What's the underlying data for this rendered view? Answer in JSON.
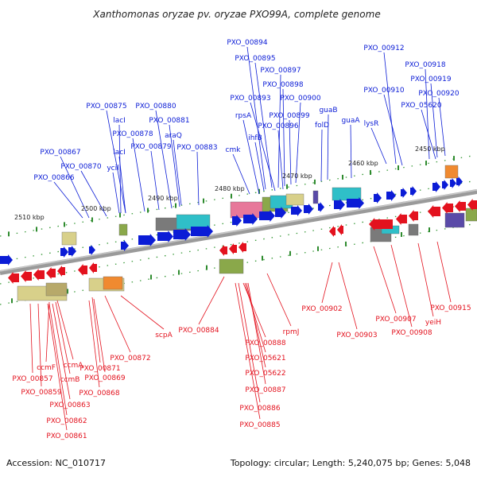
{
  "title": "Xanthomonas oryzae pv. oryzae PXO99A, complete genome",
  "footer": {
    "accession": "Accession: NC_010717",
    "summary": "Topology: circular; Length: 5,240,075 bp; Genes: 5,048"
  },
  "colors": {
    "forward_strand": "#0b1cd6",
    "reverse_strand": "#e3121e",
    "backbone": "#9a9a9a",
    "tick": "#2e8b2e",
    "block_palette": [
      "#d8d08a",
      "#b7a96a",
      "#8aa84a",
      "#2fbfc8",
      "#f08a30",
      "#7a7a7a",
      "#e7789a",
      "#5a4aa8"
    ]
  },
  "scale_labels": [
    "2510 kbp",
    "2500 kbp",
    "2490 kbp",
    "2480 kbp",
    "2470 kbp",
    "2460 kbp",
    "2450 kbp"
  ],
  "forward_labels": [
    "PXO_00894",
    "PXO_00895",
    "PXO_00897",
    "PXO_00898",
    "PXO_00893",
    "PXO_00900",
    "PXO_00899",
    "rpsA",
    "PXO_00896",
    "ihfB",
    "guaB",
    "folD",
    "guaA",
    "cmk",
    "PXO_00875",
    "PXO_00880",
    "lacI",
    "PXO_00881",
    "PXO_00878",
    "araQ",
    "PXO_00879",
    "PXO_00883",
    "lacI",
    "PXO_00867",
    "PXO_00870",
    "ycil",
    "PXO_00866",
    "PXO_00912",
    "PXO_00918",
    "PXO_00919",
    "PXO_00910",
    "PXO_00920",
    "PXO_05620",
    "lysR"
  ],
  "reverse_labels": [
    "PXO_00872",
    "ccmA",
    "PXO_00871",
    "PXO_00869",
    "ccmF",
    "ccmB",
    "PXO_00857",
    "PXO_00868",
    "PXO_00859",
    "PXO_00863",
    "PXO_00862",
    "PXO_00861",
    "scpA",
    "PXO_00884",
    "rpmJ",
    "PXO_00888",
    "PXO_05621",
    "PXO_05622",
    "PXO_00887",
    "PXO_00886",
    "PXO_00885",
    "PXO_00902",
    "PXO_00903",
    "PXO_00907",
    "PXO_00908",
    "yeiH",
    "PXO_00915"
  ]
}
